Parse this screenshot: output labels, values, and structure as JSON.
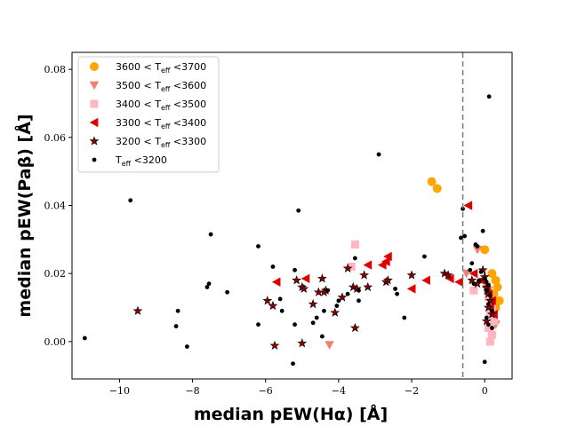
{
  "chart_data": {
    "type": "scatter",
    "xlabel": "median pEW(Hα) [Å]",
    "ylabel": "median pEW(Paβ) [Å]",
    "xlim": [
      -11.3,
      0.75
    ],
    "ylim": [
      -0.011,
      0.085
    ],
    "xticks": [
      -10,
      -8,
      -6,
      -4,
      -2,
      0
    ],
    "xtick_labels": [
      "−10",
      "−8",
      "−6",
      "−4",
      "−2",
      "0"
    ],
    "yticks": [
      0.0,
      0.02,
      0.04,
      0.06,
      0.08
    ],
    "ytick_labels": [
      "0.00",
      "0.02",
      "0.04",
      "0.06",
      "0.08"
    ],
    "vline": {
      "x": -0.6,
      "style": "dashed",
      "color": "#777777"
    },
    "legend_position": "top-left",
    "series": [
      {
        "name": "3600 < Teff <3700",
        "marker": "circle",
        "color": "#FFA500",
        "points": [
          [
            -1.45,
            0.047
          ],
          [
            -1.3,
            0.045
          ],
          [
            0.0,
            0.027
          ],
          [
            0.2,
            0.02
          ],
          [
            0.3,
            0.018
          ],
          [
            0.35,
            0.016
          ],
          [
            0.25,
            0.014
          ],
          [
            0.4,
            0.012
          ],
          [
            0.3,
            0.01
          ]
        ]
      },
      {
        "name": "3500 < Teff <3600",
        "marker": "triangle-down",
        "color": "#F08070",
        "points": [
          [
            -4.25,
            -0.001
          ],
          [
            -0.2,
            0.027
          ],
          [
            -0.5,
            0.02
          ],
          [
            0.1,
            0.015
          ],
          [
            0.2,
            0.012
          ],
          [
            0.25,
            0.008
          ],
          [
            0.3,
            0.005
          ],
          [
            0.15,
            0.003
          ],
          [
            0.2,
            0.001
          ]
        ]
      },
      {
        "name": "3400 < Teff <3500",
        "marker": "square",
        "color": "#FFB6C1",
        "points": [
          [
            -3.55,
            0.0285
          ],
          [
            -3.65,
            0.022
          ],
          [
            -0.3,
            0.015
          ],
          [
            0.1,
            0.013
          ],
          [
            0.2,
            0.01
          ],
          [
            0.15,
            0.008
          ],
          [
            0.25,
            0.006
          ],
          [
            0.1,
            0.004
          ],
          [
            0.2,
            0.002
          ],
          [
            0.15,
            0.0
          ]
        ]
      },
      {
        "name": "3300 < Teff <3400",
        "marker": "triangle-left",
        "color": "#E00000",
        "points": [
          [
            -5.7,
            0.0175
          ],
          [
            -4.9,
            0.0185
          ],
          [
            -3.2,
            0.0225
          ],
          [
            -2.8,
            0.0225
          ],
          [
            -2.7,
            0.0235
          ],
          [
            -2.65,
            0.025
          ],
          [
            -2.0,
            0.0155
          ],
          [
            -1.6,
            0.018
          ],
          [
            -0.95,
            0.0185
          ],
          [
            -0.7,
            0.0175
          ],
          [
            -0.45,
            0.04
          ],
          [
            -0.3,
            0.02
          ],
          [
            -0.1,
            0.018
          ],
          [
            0.05,
            0.016
          ],
          [
            0.1,
            0.014
          ],
          [
            0.2,
            0.012
          ],
          [
            0.15,
            0.01
          ],
          [
            0.25,
            0.008
          ]
        ]
      },
      {
        "name": "3200 < Teff <3300",
        "marker": "star",
        "color": "#8B0000",
        "points": [
          [
            -9.5,
            0.009
          ],
          [
            -5.95,
            0.012
          ],
          [
            -5.8,
            0.0105
          ],
          [
            -5.75,
            -0.0012
          ],
          [
            -5.15,
            0.018
          ],
          [
            -5.0,
            0.016
          ],
          [
            -4.95,
            0.0155
          ],
          [
            -5.0,
            -0.0005
          ],
          [
            -4.7,
            0.011
          ],
          [
            -4.55,
            0.0145
          ],
          [
            -4.45,
            0.0185
          ],
          [
            -4.35,
            0.015
          ],
          [
            -4.4,
            0.0145
          ],
          [
            -4.1,
            0.0085
          ],
          [
            -3.9,
            0.013
          ],
          [
            -3.75,
            0.0215
          ],
          [
            -3.6,
            0.016
          ],
          [
            -3.5,
            0.0155
          ],
          [
            -3.55,
            0.004
          ],
          [
            -3.3,
            0.0195
          ],
          [
            -3.2,
            0.016
          ],
          [
            -2.7,
            0.0175
          ],
          [
            -2.65,
            0.018
          ],
          [
            -2.0,
            0.0195
          ],
          [
            -1.1,
            0.02
          ],
          [
            -1.0,
            0.0195
          ],
          [
            -0.35,
            0.018
          ],
          [
            -0.2,
            0.017
          ],
          [
            -0.05,
            0.021
          ],
          [
            0.0,
            0.019
          ],
          [
            0.05,
            0.016
          ],
          [
            0.1,
            0.014
          ],
          [
            0.15,
            0.012
          ],
          [
            0.1,
            0.01
          ],
          [
            0.2,
            0.008
          ],
          [
            0.05,
            0.006
          ]
        ]
      },
      {
        "name": "Teff <3200",
        "marker": "dot",
        "color": "#000000",
        "points": [
          [
            -10.95,
            0.001
          ],
          [
            -9.7,
            0.0415
          ],
          [
            -8.4,
            0.009
          ],
          [
            -8.45,
            0.0045
          ],
          [
            -8.15,
            -0.0015
          ],
          [
            -7.5,
            0.0315
          ],
          [
            -7.55,
            0.017
          ],
          [
            -7.6,
            0.016
          ],
          [
            -7.05,
            0.0145
          ],
          [
            -6.2,
            0.028
          ],
          [
            -6.2,
            0.005
          ],
          [
            -5.8,
            0.022
          ],
          [
            -5.6,
            0.0125
          ],
          [
            -5.55,
            0.009
          ],
          [
            -5.2,
            0.005
          ],
          [
            -5.2,
            0.021
          ],
          [
            -5.1,
            0.0385
          ],
          [
            -5.25,
            -0.0065
          ],
          [
            -4.7,
            0.0055
          ],
          [
            -4.6,
            0.007
          ],
          [
            -4.4,
            0.009
          ],
          [
            -4.45,
            0.0015
          ],
          [
            -4.3,
            0.015
          ],
          [
            -4.05,
            0.0105
          ],
          [
            -4.0,
            0.012
          ],
          [
            -3.75,
            0.014
          ],
          [
            -3.55,
            0.0245
          ],
          [
            -3.45,
            0.015
          ],
          [
            -3.45,
            0.012
          ],
          [
            -2.9,
            0.055
          ],
          [
            -2.45,
            0.0155
          ],
          [
            -2.4,
            0.014
          ],
          [
            -2.2,
            0.007
          ],
          [
            -1.65,
            0.025
          ],
          [
            -0.65,
            0.0305
          ],
          [
            -0.55,
            0.031
          ],
          [
            -0.6,
            0.039
          ],
          [
            -0.4,
            0.021
          ],
          [
            -0.35,
            0.023
          ],
          [
            -0.25,
            0.0285
          ],
          [
            -0.2,
            0.028
          ],
          [
            -0.1,
            0.0205
          ],
          [
            -0.05,
            0.0325
          ],
          [
            0.0,
            0.0185
          ],
          [
            0.05,
            0.0175
          ],
          [
            0.1,
            0.0165
          ],
          [
            0.05,
            0.015
          ],
          [
            0.15,
            0.0135
          ],
          [
            0.1,
            0.011
          ],
          [
            0.2,
            0.009
          ],
          [
            0.05,
            0.007
          ],
          [
            0.1,
            0.005
          ],
          [
            0.0,
            -0.006
          ],
          [
            0.12,
            0.072
          ],
          [
            0.2,
            0.004
          ],
          [
            -0.15,
            0.018
          ],
          [
            -0.3,
            0.017
          ]
        ]
      }
    ],
    "legend": [
      {
        "prefix": "3600 < T",
        "sub": "eff",
        "suffix": " <3700"
      },
      {
        "prefix": "3500 < T",
        "sub": "eff",
        "suffix": " <3600"
      },
      {
        "prefix": "3400 < T",
        "sub": "eff",
        "suffix": " <3500"
      },
      {
        "prefix": "3300 < T",
        "sub": "eff",
        "suffix": " <3400"
      },
      {
        "prefix": "3200 < T",
        "sub": "eff",
        "suffix": " <3300"
      },
      {
        "prefix": "T",
        "sub": "eff",
        "suffix": " <3200"
      }
    ]
  }
}
